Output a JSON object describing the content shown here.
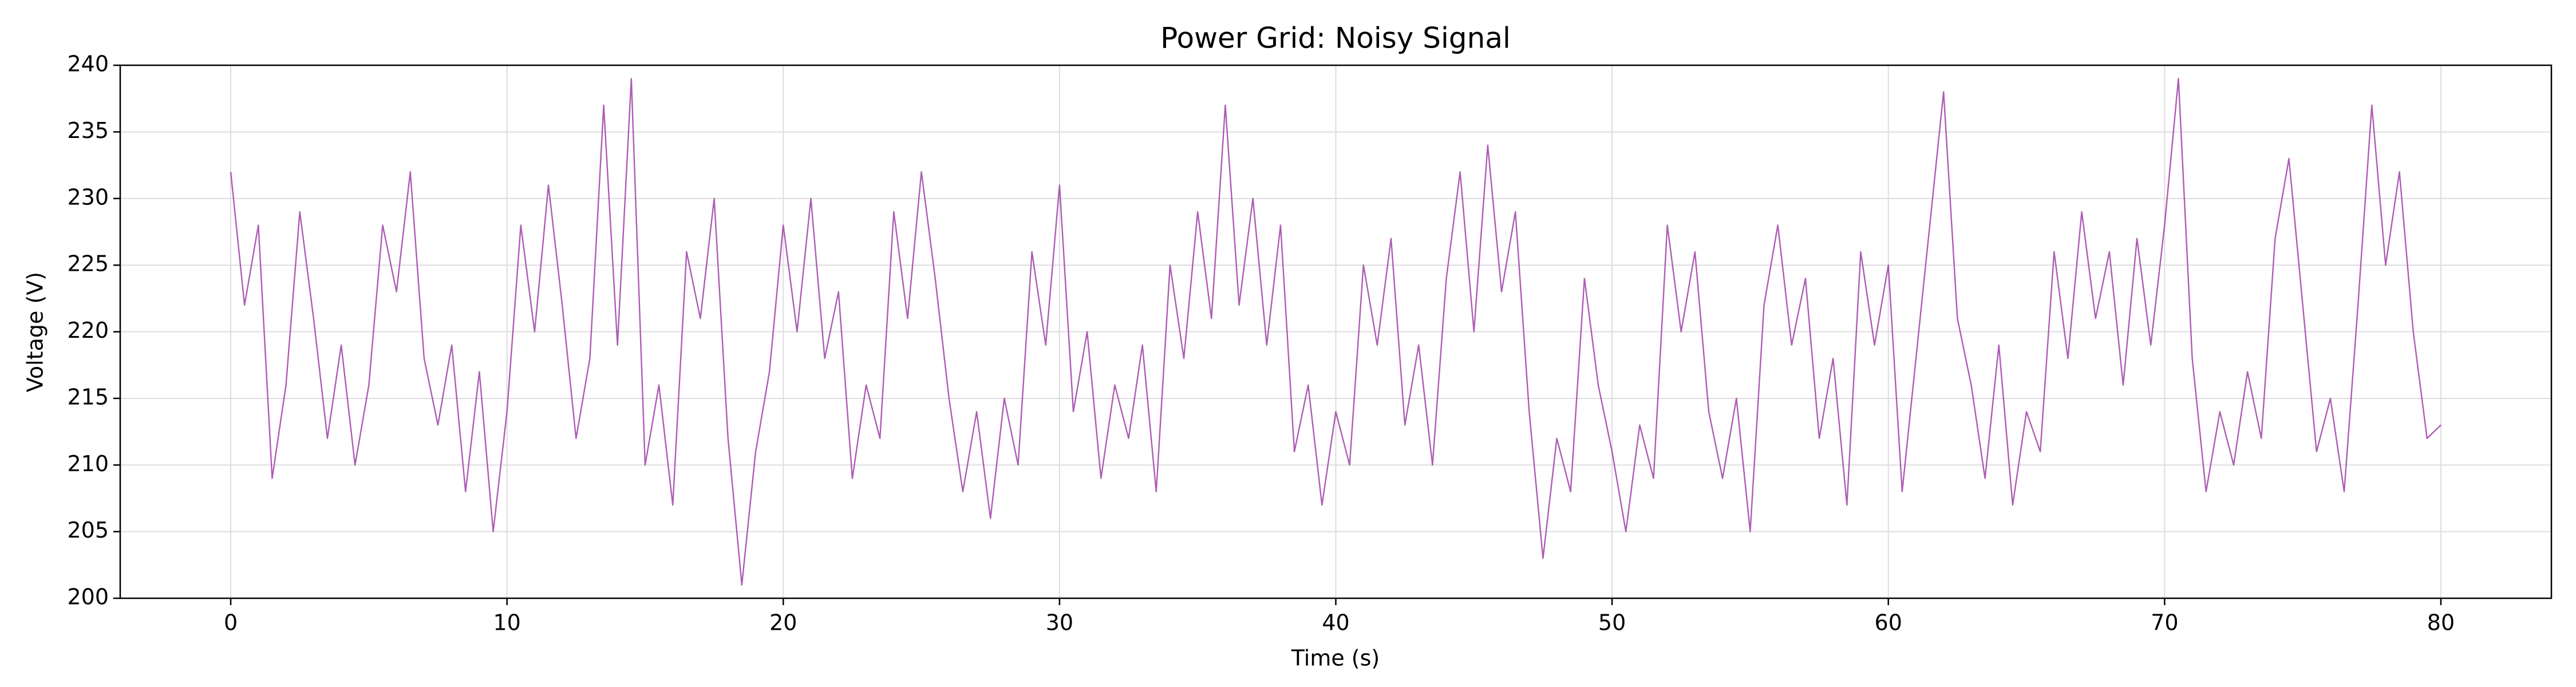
{
  "chart_data": {
    "type": "line",
    "title": "Power Grid: Noisy Signal",
    "x_label": "Time (s)",
    "y_label": "Voltage (V)",
    "color": "#a040a8",
    "grid": true,
    "xlim": [
      -4,
      84
    ],
    "ylim": [
      200,
      240
    ],
    "xticks": [
      0,
      10,
      20,
      30,
      40,
      50,
      60,
      70,
      80
    ],
    "yticks": [
      200,
      205,
      210,
      215,
      220,
      225,
      230,
      235,
      240
    ],
    "x": [
      0,
      0.5,
      1,
      1.5,
      2,
      2.5,
      3,
      3.5,
      4,
      4.5,
      5,
      5.5,
      6,
      6.5,
      7,
      7.5,
      8,
      8.5,
      9,
      9.5,
      10,
      10.5,
      11,
      11.5,
      12,
      12.5,
      13,
      13.5,
      14,
      14.5,
      15,
      15.5,
      16,
      16.5,
      17,
      17.5,
      18,
      18.5,
      19,
      19.5,
      20,
      20.5,
      21,
      21.5,
      22,
      22.5,
      23,
      23.5,
      24,
      24.5,
      25,
      25.5,
      26,
      26.5,
      27,
      27.5,
      28,
      28.5,
      29,
      29.5,
      30,
      30.5,
      31,
      31.5,
      32,
      32.5,
      33,
      33.5,
      34,
      34.5,
      35,
      35.5,
      36,
      36.5,
      37,
      37.5,
      38,
      38.5,
      39,
      39.5,
      40,
      40.5,
      41,
      41.5,
      42,
      42.5,
      43,
      43.5,
      44,
      44.5,
      45,
      45.5,
      46,
      46.5,
      47,
      47.5,
      48,
      48.5,
      49,
      49.5,
      50,
      50.5,
      51,
      51.5,
      52,
      52.5,
      53,
      53.5,
      54,
      54.5,
      55,
      55.5,
      56,
      56.5,
      57,
      57.5,
      58,
      58.5,
      59,
      59.5,
      60,
      60.5,
      61,
      61.5,
      62,
      62.5,
      63,
      63.5,
      64,
      64.5,
      65,
      65.5,
      66,
      66.5,
      67,
      67.5,
      68,
      68.5,
      69,
      69.5,
      70,
      70.5,
      71,
      71.5,
      72,
      72.5,
      73,
      73.5,
      74,
      74.5,
      75,
      75.5,
      76,
      76.5,
      77,
      77.5,
      78,
      78.5,
      79,
      79.5,
      80
    ],
    "values": [
      232,
      222,
      228,
      209,
      216,
      229,
      221,
      212,
      219,
      210,
      216,
      228,
      223,
      232,
      218,
      213,
      219,
      208,
      217,
      205,
      214,
      228,
      220,
      231,
      222,
      212,
      218,
      237,
      219,
      239,
      210,
      216,
      207,
      226,
      221,
      230,
      212,
      201,
      211,
      217,
      228,
      220,
      230,
      218,
      223,
      209,
      216,
      212,
      229,
      221,
      232,
      224,
      215,
      208,
      214,
      206,
      215,
      210,
      226,
      219,
      231,
      214,
      220,
      209,
      216,
      212,
      219,
      208,
      225,
      218,
      229,
      221,
      237,
      222,
      230,
      219,
      228,
      211,
      216,
      207,
      214,
      210,
      225,
      219,
      227,
      213,
      219,
      210,
      224,
      232,
      220,
      234,
      223,
      229,
      214,
      203,
      212,
      208,
      224,
      216,
      211,
      205,
      213,
      209,
      228,
      220,
      226,
      214,
      209,
      215,
      205,
      222,
      228,
      219,
      224,
      212,
      218,
      207,
      226,
      219,
      225,
      208,
      218,
      228,
      238,
      221,
      216,
      209,
      219,
      207,
      214,
      211,
      226,
      218,
      229,
      221,
      226,
      216,
      227,
      219,
      228,
      239,
      218,
      208,
      214,
      210,
      217,
      212,
      227,
      233,
      222,
      211,
      215,
      208,
      222,
      237,
      225,
      232,
      220,
      212,
      213
    ]
  }
}
